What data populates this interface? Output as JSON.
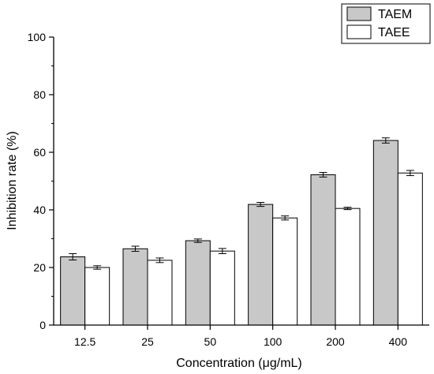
{
  "chart_data": {
    "type": "bar",
    "title": "",
    "xlabel": "Concentration (μg/mL)",
    "ylabel": "Inhibition rate (%)",
    "categories": [
      "12.5",
      "25",
      "50",
      "100",
      "200",
      "400"
    ],
    "ylim": [
      0,
      100
    ],
    "yticks": [
      0,
      20,
      40,
      60,
      80,
      100
    ],
    "grid": false,
    "legend_position": "top-right",
    "series": [
      {
        "name": "TAEM",
        "color": "#c8c8c8",
        "values": [
          23.7,
          26.5,
          29.3,
          41.9,
          52.2,
          64.1
        ],
        "errors": [
          1.1,
          0.9,
          0.6,
          0.7,
          0.8,
          0.9
        ]
      },
      {
        "name": "TAEE",
        "color": "#ffffff",
        "values": [
          20.0,
          22.5,
          25.7,
          37.2,
          40.5,
          52.8
        ],
        "errors": [
          0.6,
          0.8,
          0.9,
          0.7,
          0.4,
          0.9
        ]
      }
    ]
  }
}
